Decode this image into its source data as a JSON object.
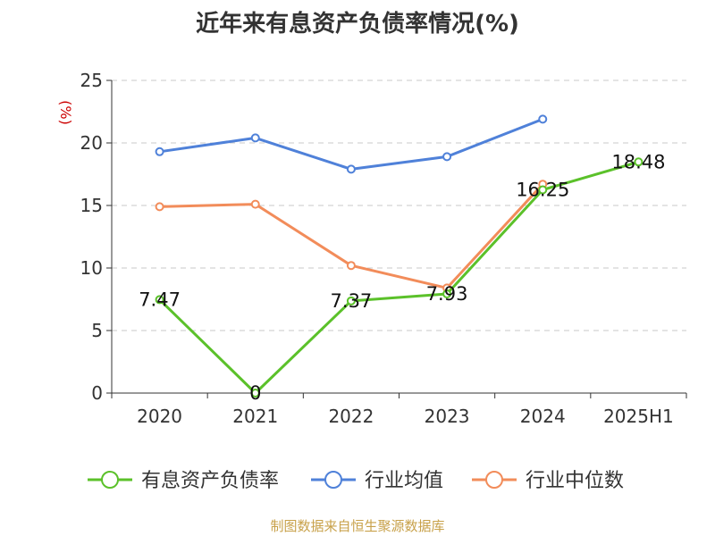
{
  "chart_data": {
    "type": "line",
    "title": "近年来有息资产负债率情况(%)",
    "unit_label": "(%)",
    "categories": [
      "2020",
      "2021",
      "2022",
      "2023",
      "2024",
      "2025H1"
    ],
    "ylim": [
      0,
      25
    ],
    "yticks": [
      0,
      5,
      10,
      15,
      20,
      25
    ],
    "grid": true,
    "legend_position": "bottom",
    "series": [
      {
        "name": "有息资产负债率",
        "color": "#5bc12a",
        "values": [
          7.47,
          0,
          7.37,
          7.93,
          16.25,
          18.48
        ],
        "labels": [
          "7.47",
          "0",
          "7.37",
          "7.93",
          "16.25",
          "18.48"
        ]
      },
      {
        "name": "行业均值",
        "color": "#4f81d9",
        "values": [
          19.3,
          20.4,
          17.9,
          18.9,
          21.9,
          null
        ]
      },
      {
        "name": "行业中位数",
        "color": "#f28c5a",
        "values": [
          14.9,
          15.1,
          10.2,
          8.4,
          16.7,
          null
        ]
      }
    ]
  },
  "source_note": "制图数据来自恒生聚源数据库"
}
